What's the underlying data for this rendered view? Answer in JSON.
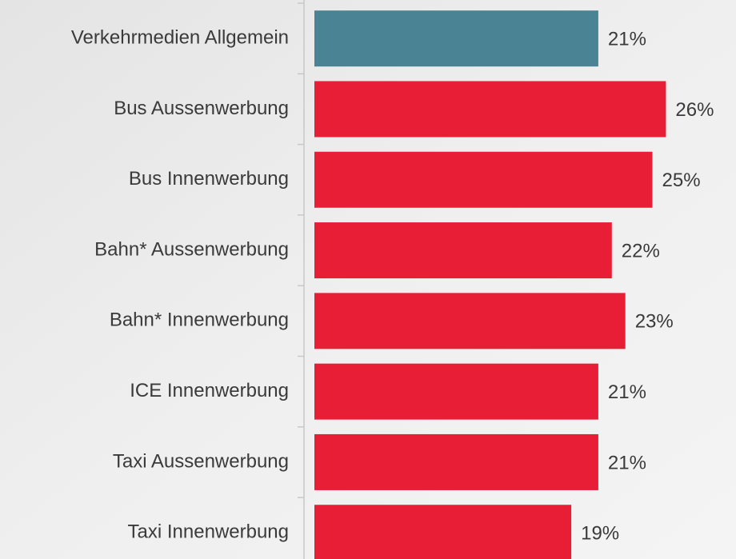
{
  "chart_data": {
    "type": "bar",
    "orientation": "horizontal",
    "categories": [
      "Verkehrmedien Allgemein",
      "Bus Aussenwerbung",
      "Bus Innenwerbung",
      "Bahn* Aussenwerbung",
      "Bahn* Innenwerbung",
      "ICE Innenwerbung",
      "Taxi Aussenwerbung",
      "Taxi Innenwerbung"
    ],
    "values": [
      21,
      26,
      25,
      22,
      23,
      21,
      21,
      19
    ],
    "value_labels": [
      "21%",
      "26%",
      "25%",
      "22%",
      "23%",
      "21%",
      "21%",
      "19%"
    ],
    "colors": [
      "#4a8494",
      "#e81e36",
      "#e81e36",
      "#e81e36",
      "#e81e36",
      "#e81e36",
      "#e81e36",
      "#e81e36"
    ],
    "xlim": [
      0,
      30
    ]
  }
}
